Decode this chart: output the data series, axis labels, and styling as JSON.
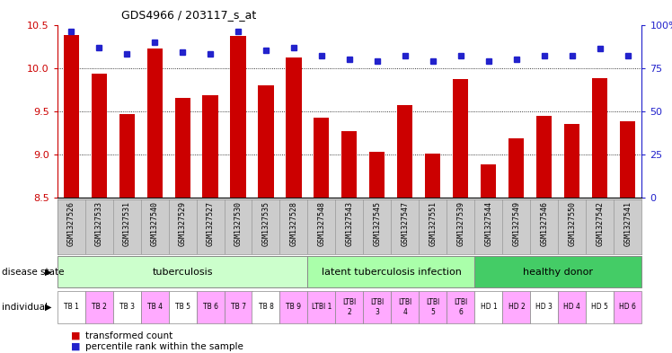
{
  "title": "GDS4966 / 203117_s_at",
  "samples": [
    "GSM1327526",
    "GSM1327533",
    "GSM1327531",
    "GSM1327540",
    "GSM1327529",
    "GSM1327527",
    "GSM1327530",
    "GSM1327535",
    "GSM1327528",
    "GSM1327548",
    "GSM1327543",
    "GSM1327545",
    "GSM1327547",
    "GSM1327551",
    "GSM1327539",
    "GSM1327544",
    "GSM1327549",
    "GSM1327546",
    "GSM1327550",
    "GSM1327542",
    "GSM1327541"
  ],
  "transformed_count": [
    10.38,
    9.93,
    9.47,
    10.22,
    9.65,
    9.68,
    10.37,
    9.8,
    10.12,
    9.42,
    9.27,
    9.03,
    9.57,
    9.01,
    9.87,
    8.88,
    9.19,
    9.45,
    9.35,
    9.88,
    9.38
  ],
  "percentile_rank": [
    96,
    87,
    83,
    90,
    84,
    83,
    96,
    85,
    87,
    82,
    80,
    79,
    82,
    79,
    82,
    79,
    80,
    82,
    82,
    86,
    82
  ],
  "ylim_left": [
    8.5,
    10.5
  ],
  "ylim_right": [
    0,
    100
  ],
  "yticks_left": [
    8.5,
    9.0,
    9.5,
    10.0,
    10.5
  ],
  "yticks_right": [
    0,
    25,
    50,
    75,
    100
  ],
  "bar_color": "#cc0000",
  "dot_color": "#2222cc",
  "disease_groups": [
    {
      "label": "tuberculosis",
      "start": 0,
      "end": 8,
      "color": "#ccffcc"
    },
    {
      "label": "latent tuberculosis infection",
      "start": 9,
      "end": 14,
      "color": "#aaffaa"
    },
    {
      "label": "healthy donor",
      "start": 15,
      "end": 20,
      "color": "#33cc55"
    }
  ],
  "individual_labels": [
    "TB 1",
    "TB 2",
    "TB 3",
    "TB 4",
    "TB 5",
    "TB 6",
    "TB 7",
    "TB 8",
    "TB 9",
    "LTBI 1",
    "LTBI\n2",
    "LTBI\n3",
    "LTBI\n4",
    "LTBI\n5",
    "LTBI\n6",
    "HD 1",
    "HD 2",
    "HD 3",
    "HD 4",
    "HD 5",
    "HD 6"
  ],
  "individual_colors": [
    "#ffffff",
    "#ffaaff",
    "#ffffff",
    "#ffaaff",
    "#ffffff",
    "#ffaaff",
    "#ffaaff",
    "#ffffff",
    "#ffaaff",
    "#ffaaff",
    "#ffaaff",
    "#ffaaff",
    "#ffaaff",
    "#ffaaff",
    "#ffaaff",
    "#ffffff",
    "#ffaaff",
    "#ffffff",
    "#ffaaff",
    "#ffffff",
    "#ffaaff"
  ],
  "xlabel_bg": "#cccccc",
  "grid_color": "#333333"
}
